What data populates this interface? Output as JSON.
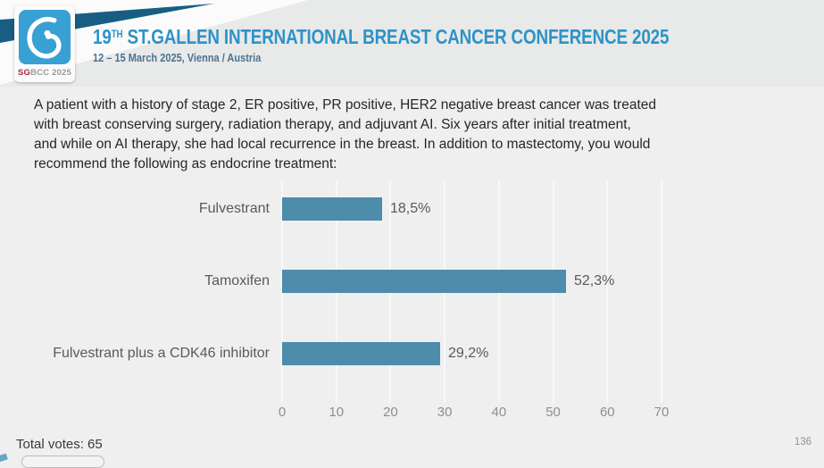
{
  "header": {
    "logo": {
      "sg": "SG",
      "bcc": "BCC",
      "year": "2025"
    },
    "title_num": "19",
    "title_sup": "TH",
    "title_rest": " ST.GALLEN INTERNATIONAL BREAST CANCER CONFERENCE 2025",
    "subtitle": "12 – 15 March 2025, Vienna / Austria"
  },
  "question": "A patient with a history of stage 2, ER positive, PR positive, HER2 negative breast cancer was treated\nwith breast conserving surgery, radiation therapy, and adjuvant AI.  Six years after initial treatment,\nand while on AI therapy, she had local recurrence in the breast.  In addition to mastectomy, you would\nrecommend the following as endocrine treatment:",
  "chart_data": {
    "type": "bar",
    "orientation": "horizontal",
    "categories": [
      "Fulvestrant",
      "Tamoxifen",
      "Fulvestrant plus a CDK46 inhibitor"
    ],
    "values": [
      18.5,
      52.3,
      29.2
    ],
    "value_labels": [
      "18,5%",
      "52,3%",
      "29,2%"
    ],
    "title": "",
    "xlabel": "",
    "ylabel": "",
    "xlim": [
      0,
      70
    ],
    "xticks": [
      0,
      10,
      20,
      30,
      40,
      50,
      60,
      70
    ],
    "grid": true,
    "legend": false,
    "bar_color": "#4d8caa"
  },
  "footer": {
    "total_votes": "Total votes: 65",
    "page_number": "136"
  },
  "colors": {
    "accent_blue": "#2d93c8",
    "logo_blue": "#38a0d3",
    "ribbon_dark_blue": "#175e82",
    "bar_blue": "#4d8caa",
    "header_gray": "#e8e9e9",
    "background_gray": "#efefef",
    "gridline": "#f8f8f8"
  }
}
